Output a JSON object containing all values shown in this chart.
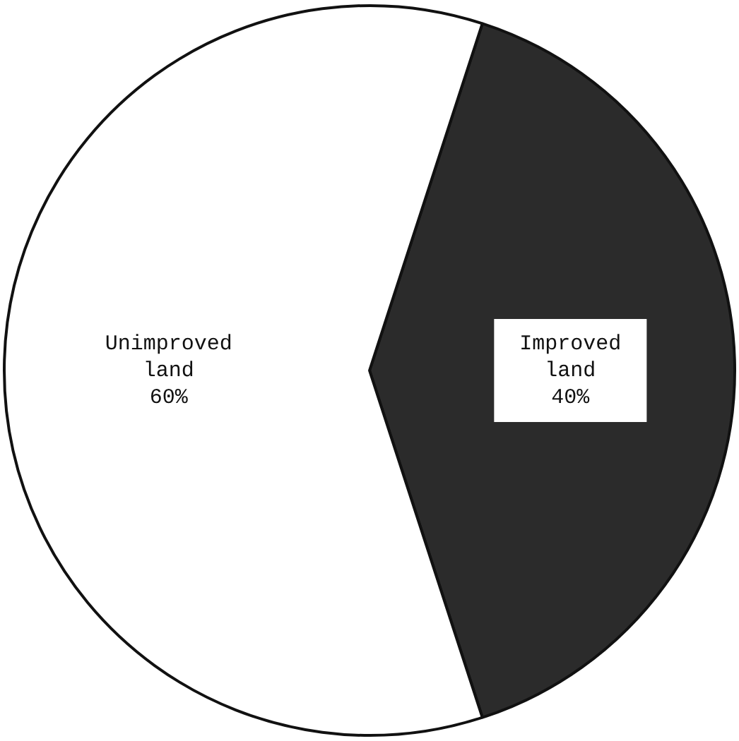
{
  "chart_data": {
    "type": "pie",
    "categories": [
      "Improved land",
      "Unimproved land"
    ],
    "values": [
      40,
      60
    ],
    "colors": [
      "#2b2b2b",
      "#ffffff"
    ],
    "value_labels": [
      "40%",
      "60%"
    ],
    "legend": false
  }
}
